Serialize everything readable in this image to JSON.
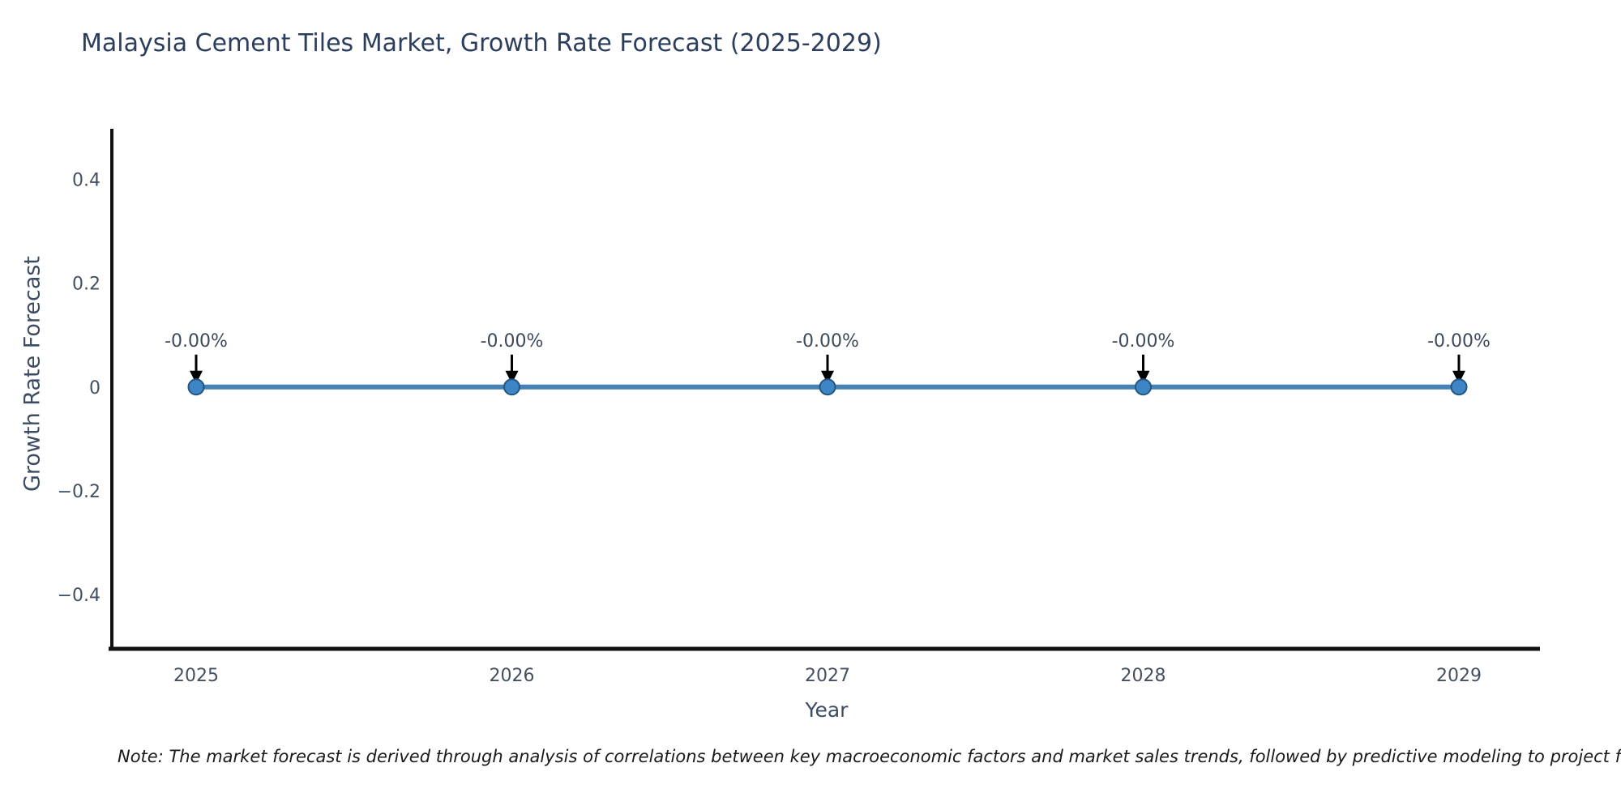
{
  "page": {
    "title": "Malaysia Cement Tiles Market, Growth Rate Forecast (2025-2029)",
    "note": "Note: The market forecast is derived through analysis of correlations between key macroeconomic factors and market sales trends, followed by predictive modeling to project future sa"
  },
  "chart_data": {
    "type": "line",
    "title": "Malaysia Cement Tiles Market, Growth Rate Forecast (2025-2029)",
    "xlabel": "Year",
    "ylabel": "Growth Rate Forecast",
    "x": [
      2025,
      2026,
      2027,
      2028,
      2029
    ],
    "series": [
      {
        "name": "Growth Rate Forecast",
        "values": [
          0,
          0,
          0,
          0,
          0
        ],
        "point_labels": [
          "-0.00%",
          "-0.00%",
          "-0.00%",
          "-0.00%",
          "-0.00%"
        ]
      }
    ],
    "x_tick_labels": [
      "2025",
      "2026",
      "2027",
      "2028",
      "2029"
    ],
    "y_ticks": [
      {
        "value": 0.4,
        "label": "0.4"
      },
      {
        "value": 0.2,
        "label": "0.2"
      },
      {
        "value": 0,
        "label": "0"
      },
      {
        "value": -0.2,
        "label": "−0.2"
      },
      {
        "value": -0.4,
        "label": "−0.4"
      }
    ],
    "ylim": [
      -0.505,
      0.498
    ],
    "grid": false,
    "legend_position": "none",
    "colors": {
      "line": "#4682b4",
      "marker_fill": "#3d85c4",
      "marker_edge": "#24567f",
      "axis": "#111111",
      "tick_label": "#445061",
      "annotation_text": "#3d4a5c",
      "annotation_arrow": "#000000",
      "title": "#2c3e5d"
    }
  }
}
